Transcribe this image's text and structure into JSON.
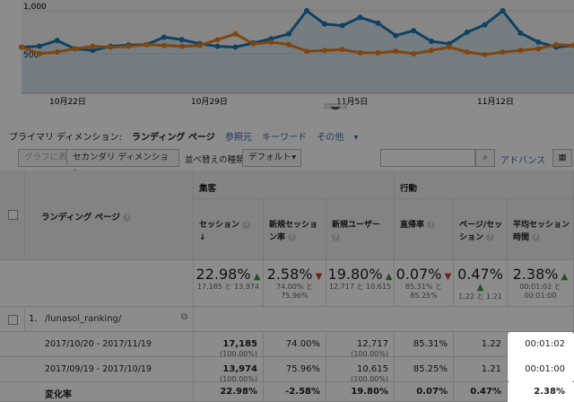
{
  "chart": {
    "y_top_label": "1,000",
    "y_mid_label": "500",
    "x_labels": [
      "10月22日",
      "10月29日",
      "11月5日",
      "11月12日"
    ],
    "blue_series": [
      560,
      570,
      640,
      540,
      520,
      570,
      585,
      590,
      680,
      650,
      600,
      570,
      560,
      610,
      660,
      720,
      1000,
      840,
      820,
      920,
      850,
      700,
      760,
      630,
      600,
      740,
      830,
      1000,
      730,
      620,
      560,
      580
    ],
    "orange_series": [
      560,
      480,
      500,
      540,
      570,
      560,
      570,
      590,
      580,
      570,
      580,
      650,
      720,
      600,
      620,
      590,
      510,
      520,
      530,
      490,
      490,
      510,
      480,
      520,
      560,
      500,
      470,
      500,
      520,
      540,
      590,
      580
    ]
  },
  "dimensions": {
    "label": "プライマリ ディメンション:",
    "active": "ランディング ページ",
    "links": [
      "参照元",
      "キーワード",
      "その他"
    ]
  },
  "toolbar": {
    "graph_btn": "グラフに表示",
    "secondary_dim": "セカンダリ ディメンション",
    "sort_label": "並べ替えの種類:",
    "sort_value": "デフォルト",
    "advanced": "アドバンス"
  },
  "table": {
    "col_landing": "ランディング ページ",
    "group_acq": "集客",
    "group_beh": "行動",
    "cols": [
      "セッション",
      "新規セッション率",
      "新規ユーザー",
      "直帰率",
      "ページ/セッション",
      "平均セッション時間"
    ],
    "summary": [
      {
        "pct": "22.98%",
        "dir": "up",
        "sub": "17,185 と 13,974"
      },
      {
        "pct": "2.58%",
        "dir": "down",
        "sub": "74.00% と 75.96%"
      },
      {
        "pct": "19.80%",
        "dir": "up",
        "sub": "12,717 と 10,615"
      },
      {
        "pct": "0.07%",
        "dir": "down",
        "sub": "85.31% と 85.25%"
      },
      {
        "pct": "0.47%",
        "dir": "up",
        "sub": "1.22 と 1.21"
      },
      {
        "pct": "2.38%",
        "dir": "up",
        "sub": "00:01:02 と 00:01:00"
      }
    ],
    "row_index": "1.",
    "row_page": "/lunasol_ranking/",
    "periods": [
      {
        "label": "2017/10/20 - 2017/11/19",
        "sessions": "17,185",
        "sessions_pct": "(100.00%)",
        "new_rate": "74.00%",
        "new_users": "12,717",
        "new_users_pct": "(100.00%)",
        "bounce": "85.31%",
        "pps": "1.22",
        "avg": "00:01:02"
      },
      {
        "label": "2017/09/19 - 2017/10/19",
        "sessions": "13,974",
        "sessions_pct": "(100.00%)",
        "new_rate": "75.96%",
        "new_users": "10,615",
        "new_users_pct": "(100.00%)",
        "bounce": "85.25%",
        "pps": "1.21",
        "avg": "00:01:00"
      }
    ],
    "change_label": "変化率",
    "change": [
      "22.98%",
      "-2.58%",
      "19.80%",
      "0.07%",
      "0.47%",
      "2.38%"
    ]
  }
}
